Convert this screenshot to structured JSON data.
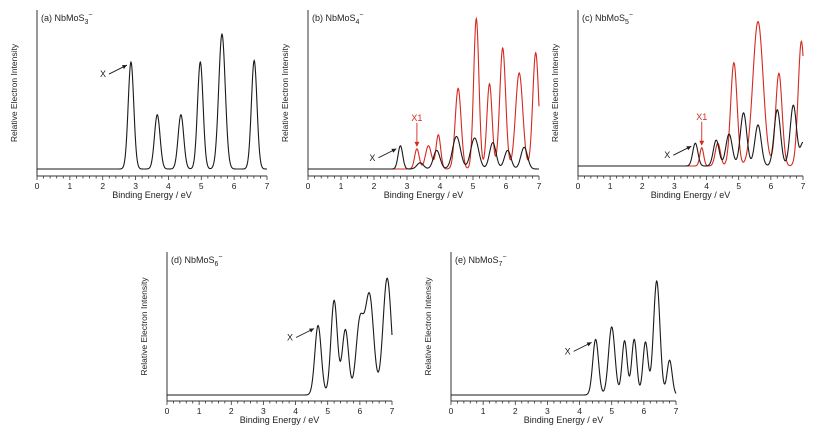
{
  "figure": {
    "colors": {
      "black_series": "#1a1a1a",
      "red_series": "#d42a1f",
      "axis": "#333333"
    }
  },
  "chart_data": [
    {
      "id": "a",
      "type": "line",
      "title": "(a) NbMoS",
      "title_sub": "3",
      "title_sup": "−",
      "xlabel": "Binding Energy / eV",
      "ylabel": "Relative Electron Intensity",
      "xlim": [
        0,
        7
      ],
      "xticks": [
        0,
        1,
        2,
        3,
        4,
        5,
        6,
        7
      ],
      "series": [
        {
          "color": "black",
          "peaks": [
            [
              2.86,
              0.69,
              0.085
            ],
            [
              3.66,
              0.35,
              0.085
            ],
            [
              4.38,
              0.35,
              0.085
            ],
            [
              4.97,
              0.69,
              0.085
            ],
            [
              5.63,
              0.87,
              0.1
            ],
            [
              6.61,
              0.7,
              0.085
            ]
          ]
        }
      ],
      "annotations": [
        {
          "label": "X",
          "x": 2.86,
          "y": 0.69,
          "color": "black"
        }
      ]
    },
    {
      "id": "b",
      "type": "line",
      "title": "(b) NbMoS",
      "title_sub": "4",
      "title_sup": "−",
      "xlabel": "Binding Energy / eV",
      "ylabel": "Relative Electron Intensity",
      "xlim": [
        0,
        7
      ],
      "xticks": [
        0,
        1,
        2,
        3,
        4,
        5,
        6,
        7
      ],
      "series": [
        {
          "color": "red",
          "peaks": [
            [
              3.3,
              0.13,
              0.07
            ],
            [
              3.65,
              0.15,
              0.09
            ],
            [
              3.95,
              0.22,
              0.07
            ],
            [
              4.55,
              0.52,
              0.09
            ],
            [
              5.1,
              0.97,
              0.08
            ],
            [
              5.5,
              0.55,
              0.08
            ],
            [
              5.9,
              0.78,
              0.09
            ],
            [
              6.4,
              0.62,
              0.11
            ],
            [
              6.9,
              0.75,
              0.09
            ]
          ]
        },
        {
          "color": "black",
          "peaks": [
            [
              2.8,
              0.15,
              0.07
            ],
            [
              3.4,
              0.04,
              0.1
            ],
            [
              3.9,
              0.12,
              0.1
            ],
            [
              4.5,
              0.21,
              0.12
            ],
            [
              5.05,
              0.2,
              0.12
            ],
            [
              5.6,
              0.17,
              0.1
            ],
            [
              6.05,
              0.12,
              0.1
            ],
            [
              6.55,
              0.14,
              0.1
            ]
          ]
        }
      ],
      "annotations": [
        {
          "label": "X",
          "x": 2.8,
          "y": 0.15,
          "color": "black"
        },
        {
          "label": "X1",
          "x": 3.3,
          "y": 0.13,
          "color": "red"
        }
      ]
    },
    {
      "id": "c",
      "type": "line",
      "title": "(c) NbMoS",
      "title_sub": "5",
      "title_sup": "−",
      "xlabel": "Binding Energy / eV",
      "ylabel": "Relative Electron Intensity",
      "xlim": [
        0,
        7
      ],
      "xticks": [
        0,
        1,
        2,
        3,
        4,
        5,
        6,
        7
      ],
      "series": [
        {
          "color": "red",
          "peaks": [
            [
              3.85,
              0.12,
              0.06
            ],
            [
              4.35,
              0.15,
              0.08
            ],
            [
              4.85,
              0.68,
              0.1
            ],
            [
              5.6,
              0.95,
              0.16
            ],
            [
              6.25,
              0.61,
              0.1
            ],
            [
              6.95,
              0.82,
              0.1
            ]
          ]
        },
        {
          "color": "black",
          "peaks": [
            [
              3.65,
              0.15,
              0.08
            ],
            [
              4.3,
              0.17,
              0.09
            ],
            [
              4.7,
              0.21,
              0.1
            ],
            [
              5.15,
              0.35,
              0.1
            ],
            [
              5.6,
              0.27,
              0.1
            ],
            [
              6.2,
              0.37,
              0.1
            ],
            [
              6.7,
              0.4,
              0.1
            ],
            [
              7.0,
              0.15,
              0.08
            ]
          ]
        }
      ],
      "annotations": [
        {
          "label": "X",
          "x": 3.65,
          "y": 0.15,
          "color": "black"
        },
        {
          "label": "X1",
          "x": 3.85,
          "y": 0.12,
          "color": "red"
        }
      ]
    },
    {
      "id": "d",
      "type": "line",
      "title": "(d) NbMoS",
      "title_sub": "6",
      "title_sup": "−",
      "xlabel": "Binding Energy / eV",
      "ylabel": "Relative Electron Intensity",
      "xlim": [
        0,
        7
      ],
      "xticks": [
        0,
        1,
        2,
        3,
        4,
        5,
        6,
        7
      ],
      "series": [
        {
          "color": "black",
          "peaks": [
            [
              4.7,
              0.5,
              0.1
            ],
            [
              5.2,
              0.68,
              0.1
            ],
            [
              5.55,
              0.47,
              0.1
            ],
            [
              6.0,
              0.52,
              0.12
            ],
            [
              6.3,
              0.71,
              0.13
            ],
            [
              6.85,
              0.84,
              0.13
            ]
          ]
        }
      ],
      "annotations": [
        {
          "label": "X",
          "x": 4.7,
          "y": 0.5,
          "color": "black"
        }
      ]
    },
    {
      "id": "e",
      "type": "line",
      "title": "(e) NbMoS",
      "title_sub": "7",
      "title_sup": "−",
      "xlabel": "Binding Energy / eV",
      "ylabel": "Relative Electron Intensity",
      "xlim": [
        0,
        7
      ],
      "xticks": [
        0,
        1,
        2,
        3,
        4,
        5,
        6,
        7
      ],
      "series": [
        {
          "color": "black",
          "peaks": [
            [
              4.5,
              0.4,
              0.09
            ],
            [
              5.0,
              0.49,
              0.1
            ],
            [
              5.4,
              0.39,
              0.08
            ],
            [
              5.7,
              0.4,
              0.08
            ],
            [
              6.05,
              0.38,
              0.08
            ],
            [
              6.4,
              0.82,
              0.1
            ],
            [
              6.8,
              0.25,
              0.08
            ]
          ]
        }
      ],
      "annotations": [
        {
          "label": "X",
          "x": 4.5,
          "y": 0.4,
          "color": "black"
        }
      ]
    }
  ]
}
